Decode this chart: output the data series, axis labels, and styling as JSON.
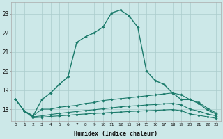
{
  "xlabel": "Humidex (Indice chaleur)",
  "background_color": "#cce8e8",
  "grid_color": "#aacccc",
  "line_color": "#1a7a6a",
  "xlim": [
    -0.5,
    23.5
  ],
  "ylim": [
    17.4,
    23.6
  ],
  "yticks": [
    18,
    19,
    20,
    21,
    22,
    23
  ],
  "xticks": [
    0,
    1,
    2,
    3,
    4,
    5,
    6,
    7,
    8,
    9,
    10,
    11,
    12,
    13,
    14,
    15,
    16,
    17,
    18,
    19,
    20,
    21,
    22,
    23
  ],
  "lines": [
    {
      "x": [
        0,
        1,
        2,
        3,
        4,
        5,
        6,
        7,
        8,
        9,
        10,
        11,
        12,
        13,
        14,
        15,
        16,
        17,
        18,
        19,
        20,
        21,
        22,
        23
      ],
      "y": [
        18.5,
        17.9,
        17.65,
        18.5,
        18.85,
        19.3,
        19.7,
        21.5,
        21.8,
        22.0,
        22.3,
        23.05,
        23.2,
        22.9,
        22.3,
        20.0,
        19.5,
        19.3,
        18.85,
        18.5,
        18.5,
        18.3,
        17.95,
        17.75
      ],
      "marker": true,
      "lw": 1.0
    },
    {
      "x": [
        0,
        1,
        2,
        3,
        4,
        5,
        6,
        7,
        8,
        9,
        10,
        11,
        12,
        13,
        14,
        15,
        16,
        17,
        18,
        19,
        20,
        21,
        22,
        23
      ],
      "y": [
        18.5,
        17.9,
        17.65,
        18.0,
        18.0,
        18.1,
        18.15,
        18.2,
        18.3,
        18.35,
        18.45,
        18.5,
        18.55,
        18.6,
        18.65,
        18.7,
        18.75,
        18.8,
        18.85,
        18.75,
        18.5,
        18.35,
        18.05,
        17.8
      ],
      "marker": true,
      "lw": 0.8
    },
    {
      "x": [
        0,
        1,
        2,
        3,
        4,
        5,
        6,
        7,
        8,
        9,
        10,
        11,
        12,
        13,
        14,
        15,
        16,
        17,
        18,
        19,
        20,
        21,
        22,
        23
      ],
      "y": [
        18.5,
        17.9,
        17.6,
        17.65,
        17.72,
        17.78,
        17.83,
        17.88,
        17.93,
        17.97,
        18.02,
        18.07,
        18.12,
        18.16,
        18.18,
        18.22,
        18.24,
        18.28,
        18.3,
        18.22,
        18.0,
        17.9,
        17.75,
        17.65
      ],
      "marker": true,
      "lw": 0.8
    },
    {
      "x": [
        0,
        1,
        2,
        3,
        4,
        5,
        6,
        7,
        8,
        9,
        10,
        11,
        12,
        13,
        14,
        15,
        16,
        17,
        18,
        19,
        20,
        21,
        22,
        23
      ],
      "y": [
        18.5,
        17.9,
        17.55,
        17.58,
        17.62,
        17.65,
        17.68,
        17.72,
        17.75,
        17.78,
        17.8,
        17.83,
        17.85,
        17.88,
        17.9,
        17.92,
        17.94,
        17.96,
        17.98,
        17.92,
        17.75,
        17.68,
        17.6,
        17.52
      ],
      "marker": true,
      "lw": 0.8
    }
  ]
}
